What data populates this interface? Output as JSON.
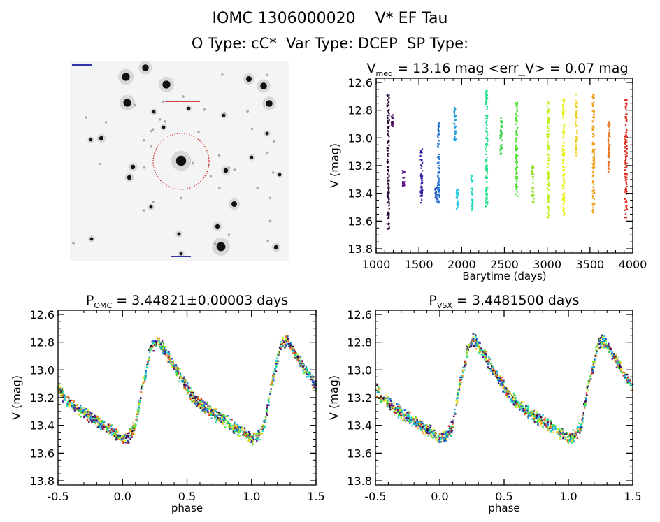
{
  "header": {
    "title": "IOMC 1306000020    V* EF Tau",
    "subtitle": "O Type: cC*  Var Type: DCEP  SP Type:"
  },
  "finder_image": {
    "type": "sky-image",
    "marker": "red dotted circle around target"
  },
  "chart_data": [
    {
      "type": "scatter",
      "title": "V_med = 13.16 mag <err_V> = 0.07 mag",
      "title_parts": {
        "pre": "V",
        "sub": "med",
        "post": " = 13.16 mag <err_V> = 0.07 mag"
      },
      "xlabel": "Barytime (days)",
      "ylabel": "V (mag)",
      "xlim": [
        1000,
        4000
      ],
      "ylim": [
        13.83,
        12.57
      ],
      "xticks": [
        1000,
        1500,
        2000,
        2500,
        3000,
        3500,
        4000
      ],
      "yticks": [
        12.6,
        12.8,
        13.0,
        13.2,
        13.4,
        13.6,
        13.8
      ],
      "ytick_labels": [
        "12.6",
        "12.8",
        "13.0",
        "13.2",
        "13.4",
        "13.6",
        "13.8"
      ],
      "y_inverted": true,
      "epochs": [
        {
          "x": 1140,
          "vmin": 12.69,
          "vmax": 13.66,
          "color": "#2a0838"
        },
        {
          "x": 1190,
          "vmin": 12.83,
          "vmax": 12.92,
          "color": "#4a0a60"
        },
        {
          "x": 1320,
          "vmin": 13.23,
          "vmax": 13.35,
          "color": "#5a0e8a"
        },
        {
          "x": 1530,
          "vmin": 13.08,
          "vmax": 13.47,
          "color": "#3a20a0"
        },
        {
          "x": 1700,
          "vmin": 13.35,
          "vmax": 13.47,
          "color": "#2050c0"
        },
        {
          "x": 1730,
          "vmin": 12.88,
          "vmax": 13.47,
          "color": "#1e70d0"
        },
        {
          "x": 1920,
          "vmin": 12.78,
          "vmax": 13.03,
          "color": "#20a0e0"
        },
        {
          "x": 1950,
          "vmin": 13.37,
          "vmax": 13.52,
          "color": "#20c8e0"
        },
        {
          "x": 2120,
          "vmin": 13.27,
          "vmax": 13.53,
          "color": "#20d8c0"
        },
        {
          "x": 2290,
          "vmin": 12.66,
          "vmax": 13.51,
          "color": "#20e090"
        },
        {
          "x": 2460,
          "vmin": 12.85,
          "vmax": 13.12,
          "color": "#30d040"
        },
        {
          "x": 2640,
          "vmin": 12.74,
          "vmax": 13.42,
          "color": "#50e030"
        },
        {
          "x": 2830,
          "vmin": 13.19,
          "vmax": 13.47,
          "color": "#90e030"
        },
        {
          "x": 3010,
          "vmin": 12.74,
          "vmax": 13.59,
          "color": "#c0f020"
        },
        {
          "x": 3190,
          "vmin": 12.72,
          "vmax": 13.56,
          "color": "#e8f020"
        },
        {
          "x": 3340,
          "vmin": 12.68,
          "vmax": 13.14,
          "color": "#f0d020"
        },
        {
          "x": 3540,
          "vmin": 12.67,
          "vmax": 13.55,
          "color": "#f0a020"
        },
        {
          "x": 3720,
          "vmin": 12.88,
          "vmax": 13.25,
          "color": "#f07020"
        },
        {
          "x": 3920,
          "vmin": 12.72,
          "vmax": 13.58,
          "color": "#e03020"
        }
      ]
    },
    {
      "type": "scatter",
      "title": "P_OMC = 3.44821±0.00003 days",
      "title_parts": {
        "pre": "P",
        "sub": "OMC",
        "post": " = 3.44821±0.00003 days"
      },
      "xlabel": "phase",
      "ylabel": "V (mag)",
      "xlim": [
        -0.5,
        1.5
      ],
      "ylim": [
        13.83,
        12.57
      ],
      "xticks": [
        -0.5,
        0.0,
        0.5,
        1.0,
        1.5
      ],
      "xtick_labels": [
        "-0.5",
        "0.0",
        "0.5",
        "1.0",
        "1.5"
      ],
      "yticks": [
        12.6,
        12.8,
        13.0,
        13.2,
        13.4,
        13.6,
        13.8
      ],
      "ytick_labels": [
        "12.6",
        "12.8",
        "13.0",
        "13.2",
        "13.4",
        "13.6",
        "13.8"
      ],
      "light_curve": [
        [
          0.0,
          13.5
        ],
        [
          0.05,
          13.48
        ],
        [
          0.1,
          13.4
        ],
        [
          0.15,
          13.12
        ],
        [
          0.18,
          13.02
        ],
        [
          0.22,
          12.83
        ],
        [
          0.27,
          12.78
        ],
        [
          0.35,
          12.9
        ],
        [
          0.45,
          13.05
        ],
        [
          0.55,
          13.2
        ],
        [
          0.65,
          13.28
        ],
        [
          0.75,
          13.34
        ],
        [
          0.85,
          13.4
        ],
        [
          0.95,
          13.46
        ],
        [
          1.0,
          13.5
        ]
      ]
    },
    {
      "type": "scatter",
      "title": "P_VSX = 3.4481500 days",
      "title_parts": {
        "pre": "P",
        "sub": "VSX",
        "post": " = 3.4481500 days"
      },
      "xlabel": "phase",
      "ylabel": "V (mag)",
      "xlim": [
        -0.5,
        1.5
      ],
      "ylim": [
        13.83,
        12.57
      ],
      "xticks": [
        -0.5,
        0.0,
        0.5,
        1.0,
        1.5
      ],
      "xtick_labels": [
        "-0.5",
        "0.0",
        "0.5",
        "1.0",
        "1.5"
      ],
      "yticks": [
        12.6,
        12.8,
        13.0,
        13.2,
        13.4,
        13.6,
        13.8
      ],
      "ytick_labels": [
        "12.6",
        "12.8",
        "13.0",
        "13.2",
        "13.4",
        "13.6",
        "13.8"
      ],
      "light_curve": [
        [
          0.0,
          13.5
        ],
        [
          0.05,
          13.48
        ],
        [
          0.1,
          13.4
        ],
        [
          0.15,
          13.12
        ],
        [
          0.18,
          13.02
        ],
        [
          0.22,
          12.83
        ],
        [
          0.27,
          12.78
        ],
        [
          0.35,
          12.9
        ],
        [
          0.45,
          13.05
        ],
        [
          0.55,
          13.2
        ],
        [
          0.65,
          13.28
        ],
        [
          0.75,
          13.34
        ],
        [
          0.85,
          13.4
        ],
        [
          0.95,
          13.46
        ],
        [
          1.0,
          13.5
        ]
      ]
    }
  ]
}
